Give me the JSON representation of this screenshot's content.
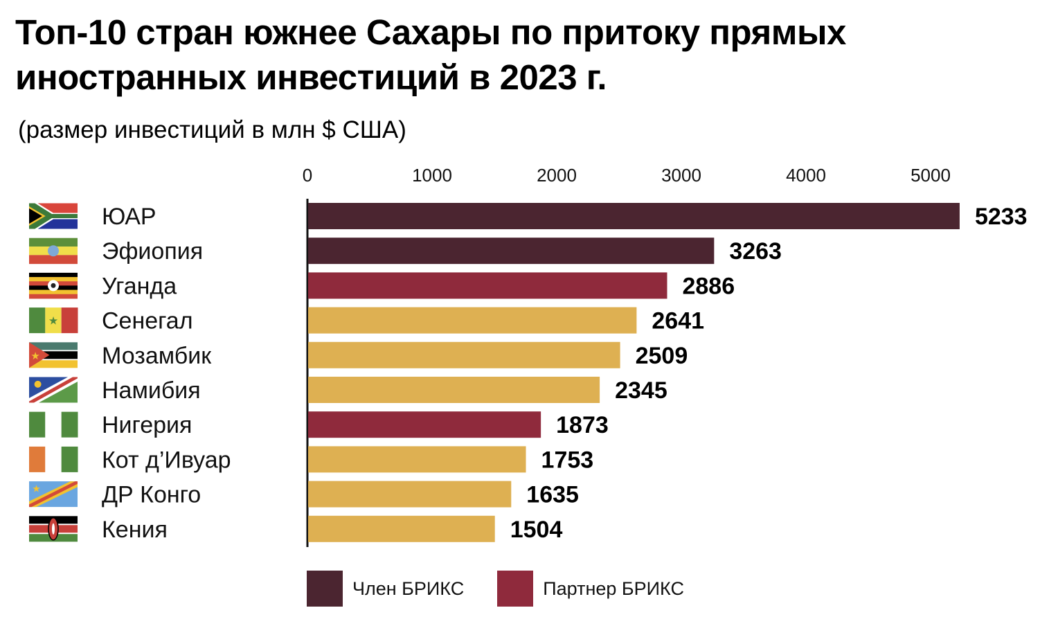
{
  "title": "Топ-10 стран южнее Сахары по притоку прямых иностранных инвестиций в 2023 г.",
  "subtitle": "(размер инвестиций в млн $ США)",
  "colors": {
    "member": "#4b2530",
    "partner": "#8f2a3c",
    "other": "#deb052",
    "axis": "#111111"
  },
  "legend": [
    {
      "label": "Член БРИКС",
      "color": "#4b2530"
    },
    {
      "label": "Партнер БРИКС",
      "color": "#8f2a3c"
    }
  ],
  "chart_data": {
    "type": "bar",
    "orientation": "horizontal",
    "title": "Топ-10 стран южнее Сахары по притоку прямых иностранных инвестиций в 2023 г.",
    "subtitle": "(размер инвестиций в млн $ США)",
    "xlim": [
      0,
      5200
    ],
    "xticks": [
      0,
      1000,
      2000,
      3000,
      4000,
      5000
    ],
    "xtick_position": "top",
    "grid": false,
    "legend_position": "bottom",
    "categories": [
      "ЮАР",
      "Эфиопия",
      "Уганда",
      "Сенегал",
      "Мозамбик",
      "Намибия",
      "Нигерия",
      "Кот д’Ивуар",
      "ДР Конго",
      "Кения"
    ],
    "values": [
      5233,
      3263,
      2886,
      2641,
      2509,
      2345,
      1873,
      1753,
      1635,
      1504
    ],
    "bar_status": [
      "member",
      "member",
      "partner",
      "other",
      "other",
      "other",
      "partner",
      "other",
      "other",
      "other"
    ],
    "flag_icons": [
      "south-africa-flag-icon",
      "ethiopia-flag-icon",
      "uganda-flag-icon",
      "senegal-flag-icon",
      "mozambique-flag-icon",
      "namibia-flag-icon",
      "nigeria-flag-icon",
      "cote-divoire-flag-icon",
      "dr-congo-flag-icon",
      "kenya-flag-icon"
    ]
  }
}
